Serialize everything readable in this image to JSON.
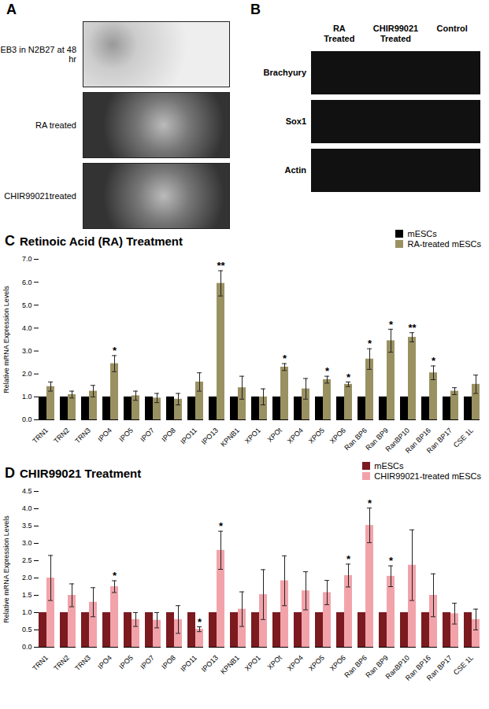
{
  "panels": [
    {
      "label": "A",
      "images": [
        "EB3 in N2B27 at 48 hr",
        "RA treated",
        "CHIR99021treated"
      ]
    },
    {
      "label": "B",
      "columns": [
        "RA Treated",
        "CHIR99021 Treated",
        "Control"
      ],
      "rows": [
        "Brachyury",
        "Sox1",
        "Actin"
      ]
    }
  ],
  "chart_data": [
    {
      "type": "bar",
      "panel": "C",
      "title": "Retinoic Acid (RA) Treatment",
      "y_label": "Relative mRNA Expression Levels",
      "categories": [
        "TRN1",
        "TRN2",
        "TRN3",
        "IPO4",
        "IPO5",
        "IPO7",
        "IPO8",
        "IPO11",
        "IPO13",
        "KPNB1",
        "XPO1",
        "XPOt",
        "XPO4",
        "XPO5",
        "XPO6",
        "Ran BP6",
        "Ran BP9",
        "RanBP10",
        "Ran BP16",
        "Ran BP17",
        "CSE 1L"
      ],
      "series": [
        {
          "name": "mESCs",
          "color": "#000000",
          "values": [
            1,
            1,
            1,
            1,
            1,
            1,
            1,
            1,
            1,
            1,
            1,
            1,
            1,
            1,
            1,
            1,
            1,
            1,
            1,
            1,
            1
          ]
        },
        {
          "name": "RA-treated mESCs",
          "color": "#9a9162",
          "values": [
            1.45,
            1.1,
            1.25,
            2.45,
            1.05,
            0.95,
            0.9,
            1.65,
            5.95,
            1.4,
            1.0,
            2.3,
            1.35,
            1.75,
            1.55,
            2.65,
            3.45,
            3.6,
            2.05,
            1.25,
            1.55
          ],
          "errors": [
            0.2,
            0.15,
            0.25,
            0.35,
            0.2,
            0.2,
            0.25,
            0.4,
            0.55,
            0.5,
            0.35,
            0.15,
            0.45,
            0.15,
            0.1,
            0.45,
            0.5,
            0.2,
            0.3,
            0.15,
            0.4
          ],
          "annotations": [
            null,
            null,
            null,
            "*",
            null,
            null,
            null,
            null,
            "**",
            null,
            null,
            "*",
            null,
            "*",
            "*",
            "*",
            "*",
            "**",
            "*",
            null,
            null
          ]
        }
      ],
      "ylim": [
        0,
        7
      ],
      "yticks": [
        0,
        1,
        2,
        3,
        4,
        5,
        6,
        7
      ],
      "grid": false,
      "legend": "top-right"
    },
    {
      "type": "bar",
      "panel": "D",
      "title": "CHIR99021 Treatment",
      "y_label": "Relative mRNA Expression Levels",
      "categories": [
        "TRN1",
        "TRN2",
        "TRN3",
        "IPO4",
        "IPO5",
        "IPO7",
        "IPO8",
        "IPO11",
        "IPO13",
        "KPNB1",
        "XPO1",
        "XPOt",
        "XPO4",
        "XPO5",
        "XPO6",
        "Ran BP6",
        "Ran BP9",
        "RanBP10",
        "Ran BP16",
        "Ran BP17",
        "CSE 1L"
      ],
      "series": [
        {
          "name": "mESCs",
          "color": "#7b1a1f",
          "values": [
            1,
            1,
            1,
            1,
            1,
            1,
            1,
            1,
            1,
            1,
            1,
            1,
            1,
            1,
            1,
            1,
            1,
            1,
            1,
            1,
            1
          ]
        },
        {
          "name": "CHIR99021-treated mESCs",
          "color": "#f2a3aa",
          "values": [
            2.0,
            1.5,
            1.3,
            1.75,
            0.8,
            0.78,
            0.8,
            0.52,
            2.8,
            1.1,
            1.52,
            1.92,
            1.63,
            1.58,
            2.07,
            3.52,
            2.05,
            2.37,
            1.5,
            0.97,
            0.8
          ],
          "errors": [
            0.65,
            0.33,
            0.42,
            0.17,
            0.2,
            0.22,
            0.4,
            0.07,
            0.55,
            0.5,
            0.72,
            0.72,
            0.55,
            0.35,
            0.33,
            0.5,
            0.3,
            1.02,
            0.62,
            0.3,
            0.3
          ],
          "annotations": [
            null,
            null,
            null,
            "*",
            null,
            null,
            null,
            "*",
            "*",
            null,
            null,
            null,
            null,
            null,
            "*",
            "*",
            "*",
            null,
            null,
            null,
            null
          ]
        }
      ],
      "ylim": [
        0,
        4.5
      ],
      "yticks": [
        0,
        0.5,
        1,
        1.5,
        2,
        2.5,
        3,
        3.5,
        4,
        4.5
      ],
      "grid": false,
      "legend": "top-right"
    }
  ]
}
